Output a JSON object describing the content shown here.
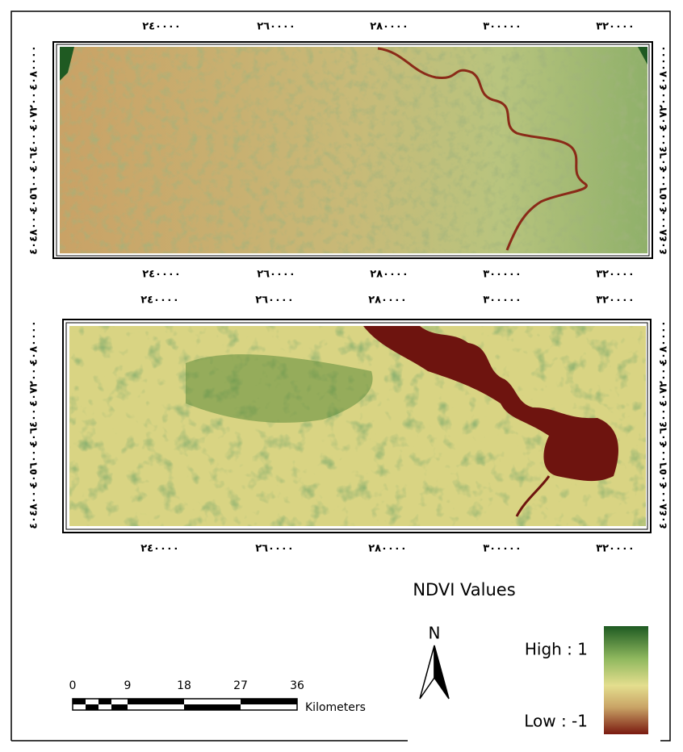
{
  "maps": [
    {
      "x_ticks": [
        "٢٤٠٠٠٠",
        "٢٦٠٠٠٠",
        "٢٨٠٠٠٠",
        "٣٠٠٠٠٠",
        "٣٢٠٠٠٠"
      ],
      "y_ticks": [
        "٤٠٨٠٠٠٠",
        "٤٠٧٢٠٠٠",
        "٤٠٦٤٠٠٠",
        "٤٠٥٦٠٠٠",
        "٤٠٤٨٠٠٠"
      ]
    },
    {
      "x_ticks": [
        "٢٤٠٠٠٠",
        "٢٦٠٠٠٠",
        "٢٨٠٠٠٠",
        "٣٠٠٠٠٠",
        "٣٢٠٠٠٠"
      ],
      "y_ticks": [
        "٤٠٨٠٠٠٠",
        "٤٠٧٢٠٠٠",
        "٤٠٦٤٠٠٠",
        "٤٠٥٦٠٠٠",
        "٤٠٤٨٠٠٠"
      ]
    }
  ],
  "legend": {
    "title": "NDVI Values",
    "high": "High : 1",
    "low": "Low : -1"
  },
  "north": "N",
  "scale_bar": {
    "ticks": [
      "0",
      "9",
      "18",
      "27",
      "36"
    ],
    "unit": "Kilometers"
  }
}
